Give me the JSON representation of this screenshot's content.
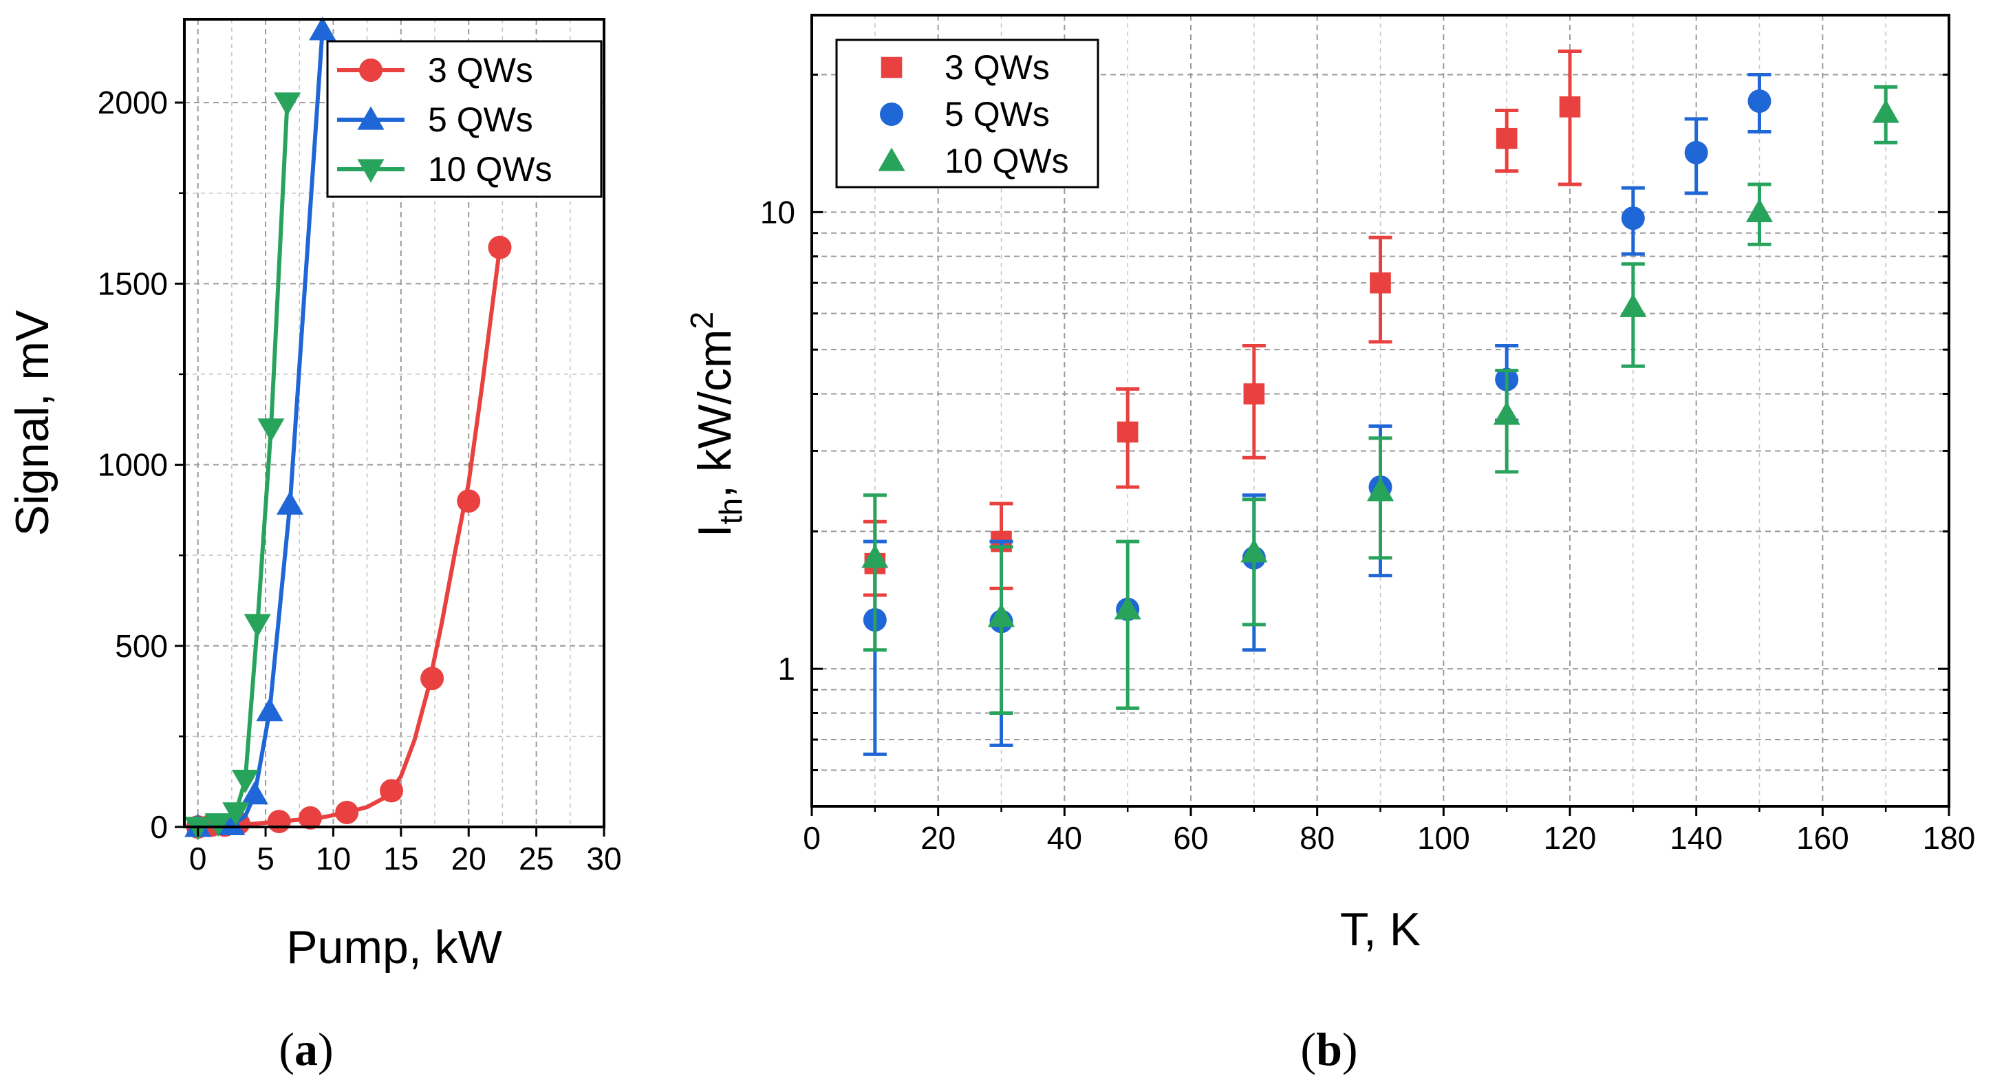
{
  "chart_data": [
    {
      "id": "a",
      "panel_label": "a",
      "type": "line",
      "xlabel": "Pump, kW",
      "ylabel": "Signal, mV",
      "xlim": [
        -1,
        30
      ],
      "ylim": [
        0,
        2230
      ],
      "xticks": [
        0,
        5,
        10,
        15,
        20,
        25,
        30
      ],
      "yticks": [
        0,
        500,
        1000,
        1500,
        2000
      ],
      "grid": true,
      "legend_position": "top-right",
      "series": [
        {
          "name": "3 QWs",
          "color": "#e8413f",
          "marker": "circle",
          "x": [
            0,
            1,
            2,
            3,
            6,
            8.3,
            11,
            14.3,
            17.3,
            20,
            22.3
          ],
          "y": [
            0,
            5,
            5,
            10,
            15,
            25,
            40,
            100,
            410,
            900,
            1600
          ],
          "curve_x": [
            0,
            3,
            6,
            9,
            11,
            12.5,
            14,
            15,
            16,
            17,
            18,
            19,
            20,
            21,
            22.3
          ],
          "curve_y": [
            0,
            5,
            15,
            25,
            40,
            55,
            85,
            140,
            240,
            380,
            560,
            760,
            950,
            1220,
            1600
          ]
        },
        {
          "name": "5 QWs",
          "color": "#1f66d6",
          "marker": "triangle-up",
          "x": [
            0,
            2.5,
            4.2,
            5.3,
            6.8,
            9.2
          ],
          "y": [
            0,
            5,
            90,
            320,
            890,
            2200
          ],
          "curve_x": [
            0,
            2.5,
            3.5,
            4.2,
            5.3,
            6.8,
            9.2
          ],
          "curve_y": [
            0,
            5,
            30,
            90,
            320,
            890,
            2200
          ]
        },
        {
          "name": "10 QWs",
          "color": "#27a35b",
          "marker": "triangle-down",
          "x": [
            0,
            1.5,
            2.8,
            3.5,
            4.4,
            5.4,
            6.6
          ],
          "y": [
            0,
            10,
            40,
            130,
            560,
            1100,
            2000
          ],
          "curve_x": [
            0,
            1.5,
            2.8,
            3.5,
            4.4,
            5.4,
            6.6
          ],
          "curve_y": [
            0,
            10,
            40,
            130,
            560,
            1100,
            2000
          ]
        }
      ]
    },
    {
      "id": "b",
      "panel_label": "b",
      "type": "scatter",
      "xlabel": "T, K",
      "ylabel_main": "I",
      "ylabel_sub": "th",
      "ylabel_rest": ", kW/cm",
      "ylabel_sup": "2",
      "yscale": "log",
      "xlim": [
        0,
        180
      ],
      "ylim": [
        0.5,
        27
      ],
      "xticks": [
        0,
        20,
        40,
        60,
        80,
        100,
        120,
        140,
        160,
        180
      ],
      "ytick_labels": [
        1,
        10
      ],
      "grid": true,
      "legend_position": "top-left",
      "series": [
        {
          "name": "3 QWs",
          "color": "#e8413f",
          "marker": "square",
          "points": [
            {
              "x": 10,
              "y": 1.7,
              "lo": 1.45,
              "hi": 2.1
            },
            {
              "x": 30,
              "y": 1.9,
              "lo": 1.5,
              "hi": 2.3
            },
            {
              "x": 50,
              "y": 3.3,
              "lo": 2.5,
              "hi": 4.1
            },
            {
              "x": 70,
              "y": 4.0,
              "lo": 2.9,
              "hi": 5.1
            },
            {
              "x": 90,
              "y": 7.0,
              "lo": 5.2,
              "hi": 8.8
            },
            {
              "x": 110,
              "y": 14.5,
              "lo": 12.3,
              "hi": 16.7
            },
            {
              "x": 120,
              "y": 17.0,
              "lo": 11.5,
              "hi": 22.5
            }
          ]
        },
        {
          "name": "5 QWs",
          "color": "#1f66d6",
          "marker": "circle",
          "points": [
            {
              "x": 10,
              "y": 1.28,
              "lo": 0.65,
              "hi": 1.9
            },
            {
              "x": 30,
              "y": 1.27,
              "lo": 0.68,
              "hi": 1.9
            },
            {
              "x": 50,
              "y": 1.35,
              "lo": 1.35,
              "hi": 1.35
            },
            {
              "x": 70,
              "y": 1.75,
              "lo": 1.1,
              "hi": 2.4
            },
            {
              "x": 90,
              "y": 2.5,
              "lo": 1.6,
              "hi": 3.4
            },
            {
              "x": 110,
              "y": 4.3,
              "lo": 3.5,
              "hi": 5.1
            },
            {
              "x": 130,
              "y": 9.7,
              "lo": 8.1,
              "hi": 11.3
            },
            {
              "x": 140,
              "y": 13.5,
              "lo": 11.0,
              "hi": 16.0
            },
            {
              "x": 150,
              "y": 17.5,
              "lo": 15.0,
              "hi": 20.0
            }
          ]
        },
        {
          "name": "10 QWs",
          "color": "#27a35b",
          "marker": "triangle-up",
          "points": [
            {
              "x": 10,
              "y": 1.75,
              "lo": 1.1,
              "hi": 2.4
            },
            {
              "x": 30,
              "y": 1.3,
              "lo": 0.8,
              "hi": 1.85
            },
            {
              "x": 50,
              "y": 1.35,
              "lo": 0.82,
              "hi": 1.9
            },
            {
              "x": 70,
              "y": 1.8,
              "lo": 1.25,
              "hi": 2.35
            },
            {
              "x": 90,
              "y": 2.45,
              "lo": 1.75,
              "hi": 3.2
            },
            {
              "x": 110,
              "y": 3.6,
              "lo": 2.7,
              "hi": 4.5
            },
            {
              "x": 130,
              "y": 6.2,
              "lo": 4.6,
              "hi": 7.7
            },
            {
              "x": 150,
              "y": 10.0,
              "lo": 8.5,
              "hi": 11.5
            },
            {
              "x": 170,
              "y": 16.5,
              "lo": 14.2,
              "hi": 18.8
            }
          ]
        }
      ]
    }
  ]
}
